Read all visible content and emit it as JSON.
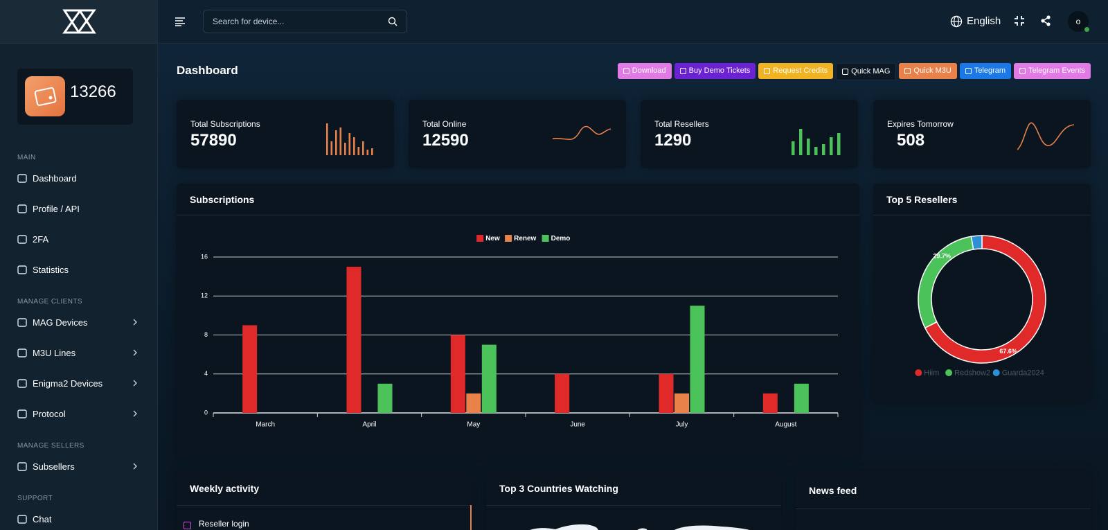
{
  "header": {
    "search_placeholder": "Search for device...",
    "language": "English",
    "avatar": "o"
  },
  "sidebar": {
    "balance": "13266",
    "sections": [
      {
        "title": "MAIN",
        "items": [
          {
            "label": "Dashboard"
          },
          {
            "label": "Profile / API"
          },
          {
            "label": "2FA"
          },
          {
            "label": "Statistics"
          }
        ]
      },
      {
        "title": "MANAGE CLIENTS",
        "items": [
          {
            "label": "MAG Devices",
            "submenu": true
          },
          {
            "label": "M3U Lines",
            "submenu": true
          },
          {
            "label": "Enigma2 Devices",
            "submenu": true
          },
          {
            "label": "Protocol",
            "submenu": true
          }
        ]
      },
      {
        "title": "MANAGE SELLERS",
        "items": [
          {
            "label": "Subsellers",
            "submenu": true
          }
        ]
      },
      {
        "title": "SUPPORT",
        "items": [
          {
            "label": "Chat"
          }
        ]
      }
    ]
  },
  "page_title": "Dashboard",
  "buttons": [
    {
      "label": "Download",
      "color": "#e27ae6"
    },
    {
      "label": "Buy Demo Tickets",
      "color": "#6a22d2"
    },
    {
      "label": "Request Credits",
      "color": "#f1b322"
    },
    {
      "label": "Quick MAG",
      "color": "#0c1925"
    },
    {
      "label": "Quick M3U",
      "color": "#e8824a"
    },
    {
      "label": "Telegram",
      "color": "#1b78e6"
    },
    {
      "label": "Telegram Events",
      "color": "#e27ae6"
    }
  ],
  "stats": [
    {
      "label": "Total Subscriptions",
      "value": 57890
    },
    {
      "label": "Total Online",
      "value": 12590
    },
    {
      "label": "Total Resellers",
      "value": 1290
    },
    {
      "label": "Expires Tomorrow",
      "value": 508
    }
  ],
  "chart_data": [
    {
      "type": "bar",
      "title": "Subscriptions",
      "categories": [
        "March",
        "April",
        "May",
        "June",
        "July",
        "August"
      ],
      "series": [
        {
          "name": "New",
          "color": "#e02a2a",
          "values": [
            9,
            15,
            8,
            4,
            4,
            2
          ]
        },
        {
          "name": "Renew",
          "color": "#e8824a",
          "values": [
            0,
            0,
            2,
            0,
            2,
            0
          ]
        },
        {
          "name": "Demo",
          "color": "#4cc35a",
          "values": [
            0,
            3,
            7,
            0,
            11,
            3
          ]
        }
      ],
      "ylim": [
        0,
        16
      ],
      "yticks": [
        0,
        4,
        8,
        12,
        16
      ],
      "grid": true,
      "legend": "top"
    },
    {
      "type": "pie",
      "title": "Top 5 Resellers",
      "donut": true,
      "categories": [
        "Hiim",
        "Redshow2",
        "Guarda2024"
      ],
      "values": [
        67.6,
        29.7,
        2.7
      ],
      "value_labels": [
        "67.6%",
        "29.7%",
        null
      ],
      "colors": [
        "#e02a2a",
        "#4cc35a",
        "#2d8fd5"
      ],
      "legend": "bottom"
    }
  ],
  "weekly": {
    "title": "Weekly activity",
    "items": [
      "Reseller login"
    ]
  },
  "countries": {
    "title": "Top 3 Countries Watching"
  },
  "news": {
    "title": "News feed"
  }
}
